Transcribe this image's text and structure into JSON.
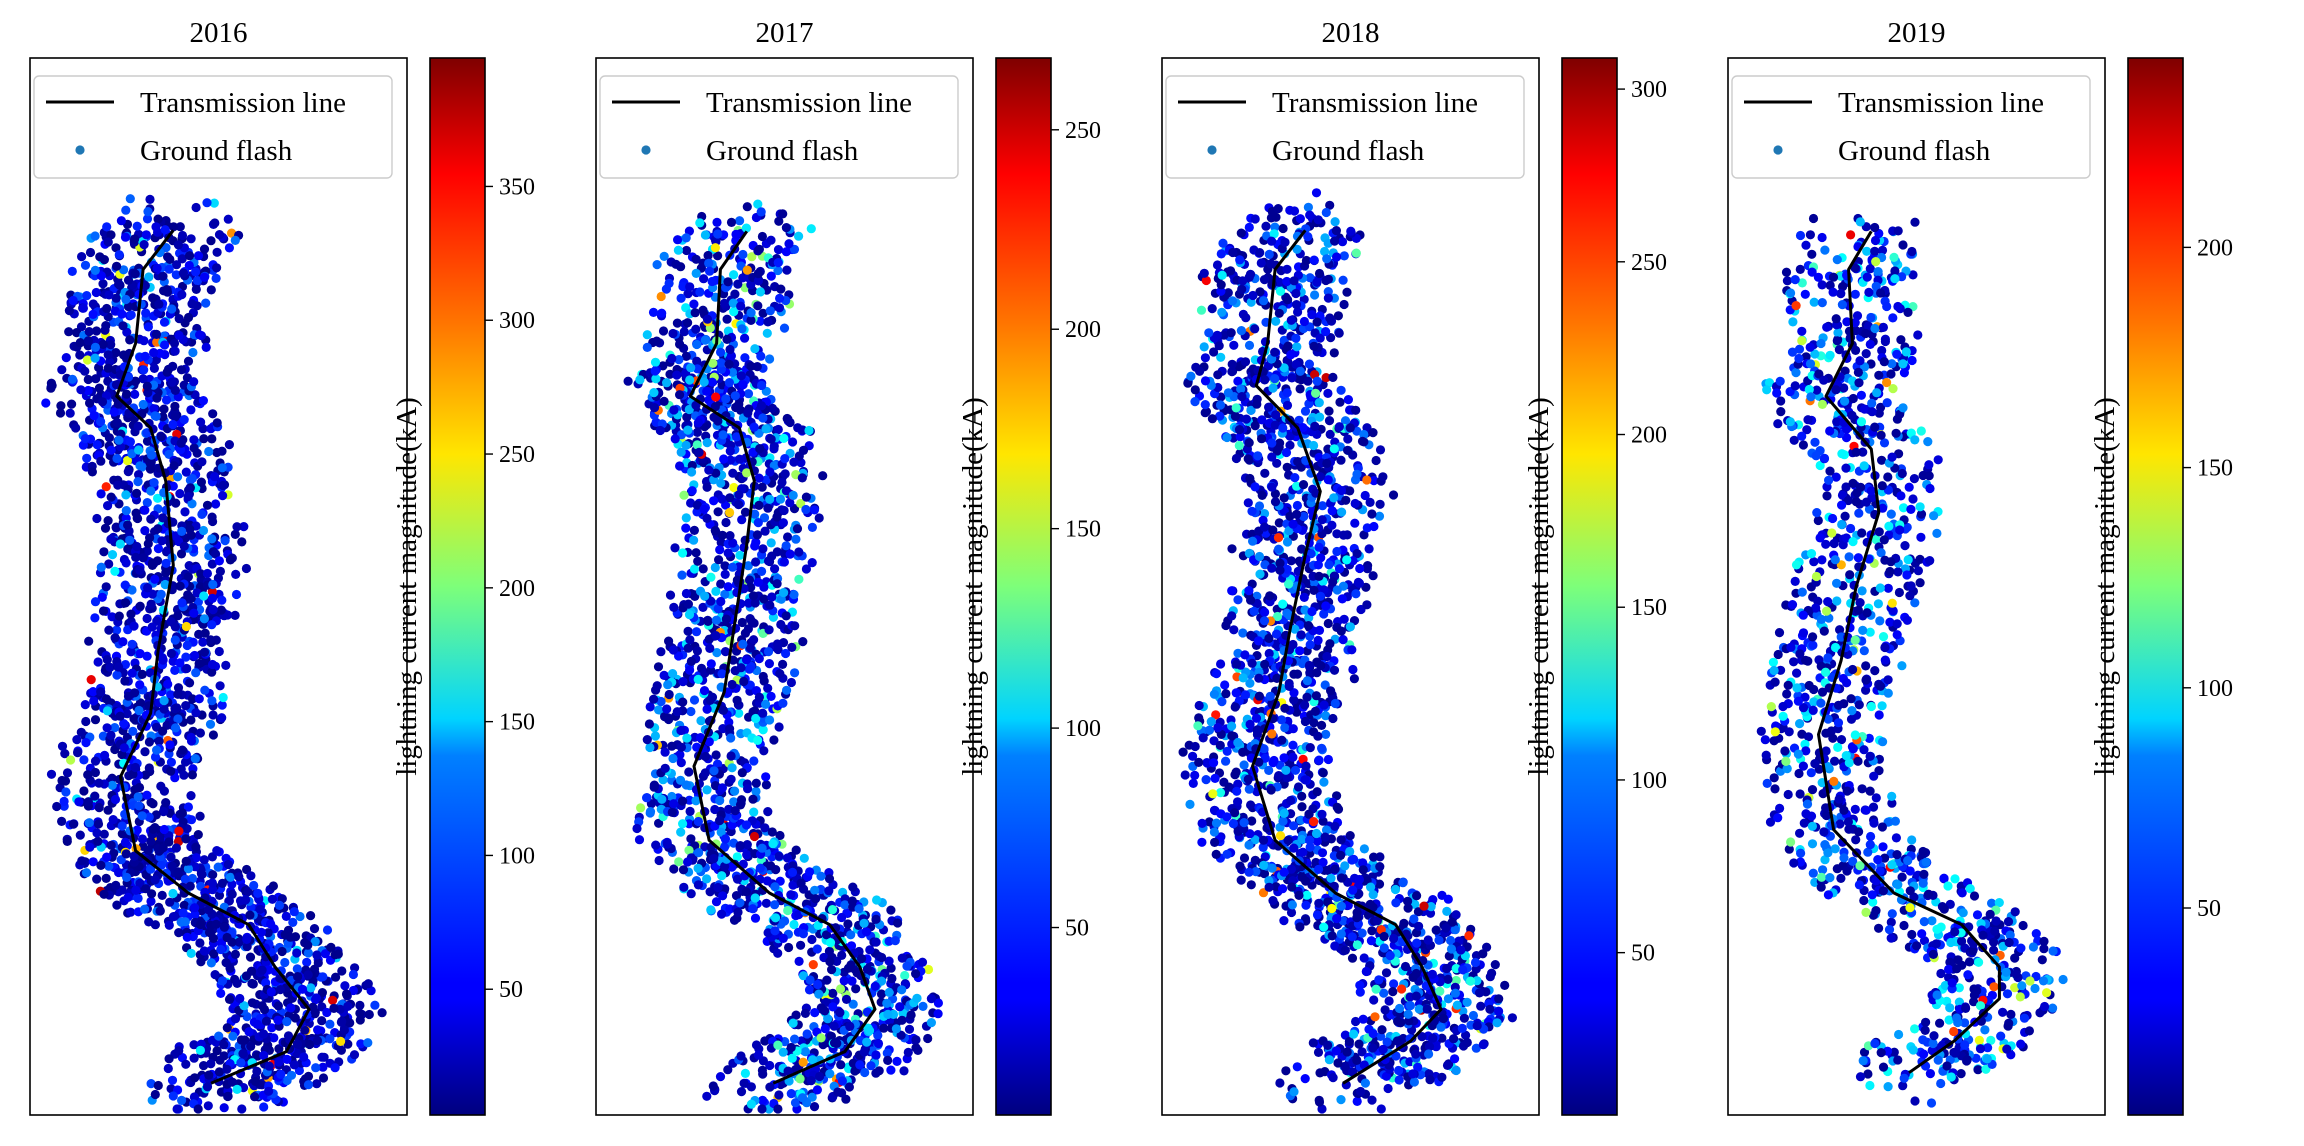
{
  "colormap": "jet",
  "colorbar_label": "lightning current magnitude(kA)",
  "legend_items": {
    "line": "Transmission line",
    "flash": "Ground flash"
  },
  "colors": {
    "line": "#000000",
    "flash_legend": "#1f77b4",
    "frame": "#000000"
  },
  "chart_data": [
    {
      "type": "scatter",
      "title": "2016",
      "legend": [
        "Transmission line",
        "Ground flash"
      ],
      "legend_position": "top",
      "color_range": [
        3,
        398
      ],
      "colorbar_ticks": [
        50,
        100,
        150,
        200,
        250,
        300,
        350
      ],
      "series": [
        {
          "name": "Transmission line",
          "kind": "line"
        },
        {
          "name": "Ground flash",
          "kind": "scatter"
        }
      ]
    },
    {
      "type": "scatter",
      "title": "2017",
      "legend": [
        "Transmission line",
        "Ground flash"
      ],
      "legend_position": "top",
      "color_range": [
        3,
        268
      ],
      "colorbar_ticks": [
        50,
        100,
        150,
        200,
        250
      ],
      "series": [
        {
          "name": "Transmission line",
          "kind": "line"
        },
        {
          "name": "Ground flash",
          "kind": "scatter"
        }
      ]
    },
    {
      "type": "scatter",
      "title": "2018",
      "legend": [
        "Transmission line",
        "Ground flash"
      ],
      "legend_position": "top",
      "color_range": [
        3,
        309
      ],
      "colorbar_ticks": [
        50,
        100,
        150,
        200,
        250,
        300
      ],
      "series": [
        {
          "name": "Transmission line",
          "kind": "line"
        },
        {
          "name": "Ground flash",
          "kind": "scatter"
        }
      ]
    },
    {
      "type": "scatter",
      "title": "2019",
      "legend": [
        "Transmission line",
        "Ground flash"
      ],
      "legend_position": "top",
      "color_range": [
        3,
        243
      ],
      "colorbar_ticks": [
        50,
        100,
        150,
        200
      ],
      "series": [
        {
          "name": "Transmission line",
          "kind": "line"
        },
        {
          "name": "Ground flash",
          "kind": "scatter"
        }
      ]
    }
  ]
}
